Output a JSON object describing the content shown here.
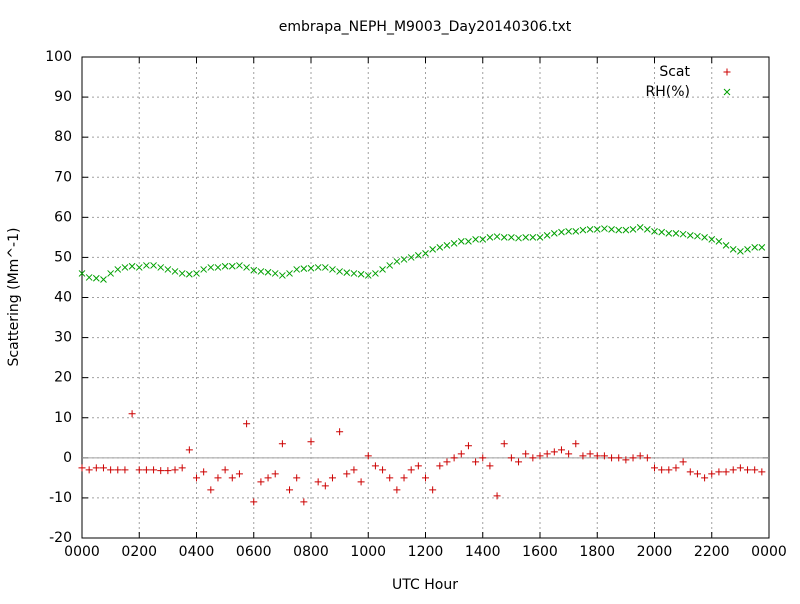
{
  "chart_data": {
    "type": "scatter",
    "title": "embrapa_NEPH_M9003_Day20140306.txt",
    "xlabel": "UTC Hour",
    "ylabel": "Scattering (Mm^-1)",
    "xlim": [
      0,
      24
    ],
    "ylim": [
      -20,
      100
    ],
    "xticks": [
      {
        "value": 0,
        "label": "0000"
      },
      {
        "value": 2,
        "label": "0200"
      },
      {
        "value": 4,
        "label": "0400"
      },
      {
        "value": 6,
        "label": "0600"
      },
      {
        "value": 8,
        "label": "0800"
      },
      {
        "value": 10,
        "label": "1000"
      },
      {
        "value": 12,
        "label": "1200"
      },
      {
        "value": 14,
        "label": "1400"
      },
      {
        "value": 16,
        "label": "1600"
      },
      {
        "value": 18,
        "label": "1800"
      },
      {
        "value": 20,
        "label": "2000"
      },
      {
        "value": 22,
        "label": "2200"
      },
      {
        "value": 24,
        "label": "0000"
      }
    ],
    "yticks": [
      -20,
      -10,
      0,
      10,
      20,
      30,
      40,
      50,
      60,
      70,
      80,
      90,
      100
    ],
    "grid": true,
    "zeroaxis": true,
    "legend": "top-right",
    "x": [
      0,
      0.25,
      0.5,
      0.75,
      1,
      1.25,
      1.5,
      1.75,
      2,
      2.25,
      2.5,
      2.75,
      3,
      3.25,
      3.5,
      3.75,
      4,
      4.25,
      4.5,
      4.75,
      5,
      5.25,
      5.5,
      5.75,
      6,
      6.25,
      6.5,
      6.75,
      7,
      7.25,
      7.5,
      7.75,
      8,
      8.25,
      8.5,
      8.75,
      9,
      9.25,
      9.5,
      9.75,
      10,
      10.25,
      10.5,
      10.75,
      11,
      11.25,
      11.5,
      11.75,
      12,
      12.25,
      12.5,
      12.75,
      13,
      13.25,
      13.5,
      13.75,
      14,
      14.25,
      14.5,
      14.75,
      15,
      15.25,
      15.5,
      15.75,
      16,
      16.25,
      16.5,
      16.75,
      17,
      17.25,
      17.5,
      17.75,
      18,
      18.25,
      18.5,
      18.75,
      19,
      19.25,
      19.5,
      19.75,
      20,
      20.25,
      20.5,
      20.75,
      21,
      21.25,
      21.5,
      21.75,
      22,
      22.25,
      22.5,
      22.75,
      23,
      23.25,
      23.5,
      23.75
    ],
    "series": [
      {
        "name": "Scat",
        "color": "#cc0000",
        "marker": "plus",
        "values": [
          -2.5,
          -3,
          -2.5,
          -2.5,
          -3,
          -3,
          -3,
          11,
          -3,
          -3,
          -3,
          -3.2,
          -3.2,
          -3,
          -2.5,
          2,
          -5,
          -3.5,
          -8,
          -5,
          -3,
          -5,
          -4,
          8.5,
          -11,
          -6,
          -5,
          -4,
          3.5,
          -8,
          -5,
          -11,
          4,
          -6,
          -7,
          -5,
          6.5,
          -4,
          -3,
          -6,
          0.5,
          -2,
          -3,
          -5,
          -8,
          -5,
          -3,
          -2,
          -5,
          -8,
          -2,
          -1,
          0,
          1,
          3,
          -1,
          0,
          -2,
          -9.5,
          3.5,
          0,
          -1,
          1,
          0,
          0.5,
          1,
          1.5,
          2,
          1,
          3.5,
          0.5,
          1,
          0.5,
          0.5,
          0,
          0,
          -0.5,
          0,
          0.5,
          0,
          -2.5,
          -3,
          -3,
          -2.5,
          -1,
          -3.5,
          -4,
          -5,
          -4,
          -3.5,
          -3.5,
          -3,
          -2.5,
          -3,
          -3,
          -3.5
        ]
      },
      {
        "name": "RH(%)",
        "color": "#00a000",
        "marker": "cross",
        "values": [
          46,
          45,
          44.8,
          44.5,
          46,
          47,
          47.5,
          47.8,
          47.5,
          48,
          48,
          47.5,
          47,
          46.5,
          46,
          45.8,
          46,
          47,
          47.5,
          47.5,
          47.8,
          47.8,
          48,
          47.5,
          46.8,
          46.5,
          46.3,
          46,
          45.5,
          46,
          47,
          47.2,
          47.3,
          47.5,
          47.5,
          47,
          46.5,
          46.2,
          46,
          45.8,
          45.5,
          46,
          47,
          48,
          49,
          49.5,
          50,
          50.5,
          51,
          52,
          52.5,
          53,
          53.5,
          54,
          54,
          54.5,
          54.5,
          55,
          55.2,
          55,
          55,
          54.8,
          55,
          55,
          55,
          55.5,
          56,
          56.3,
          56.5,
          56.5,
          56.8,
          57,
          57,
          57.2,
          57,
          56.8,
          56.8,
          57,
          57.5,
          57,
          56.5,
          56.3,
          56,
          56,
          55.8,
          55.5,
          55.3,
          55,
          54.5,
          54,
          53,
          52,
          51.5,
          52,
          52.5,
          52.5
        ]
      }
    ]
  }
}
